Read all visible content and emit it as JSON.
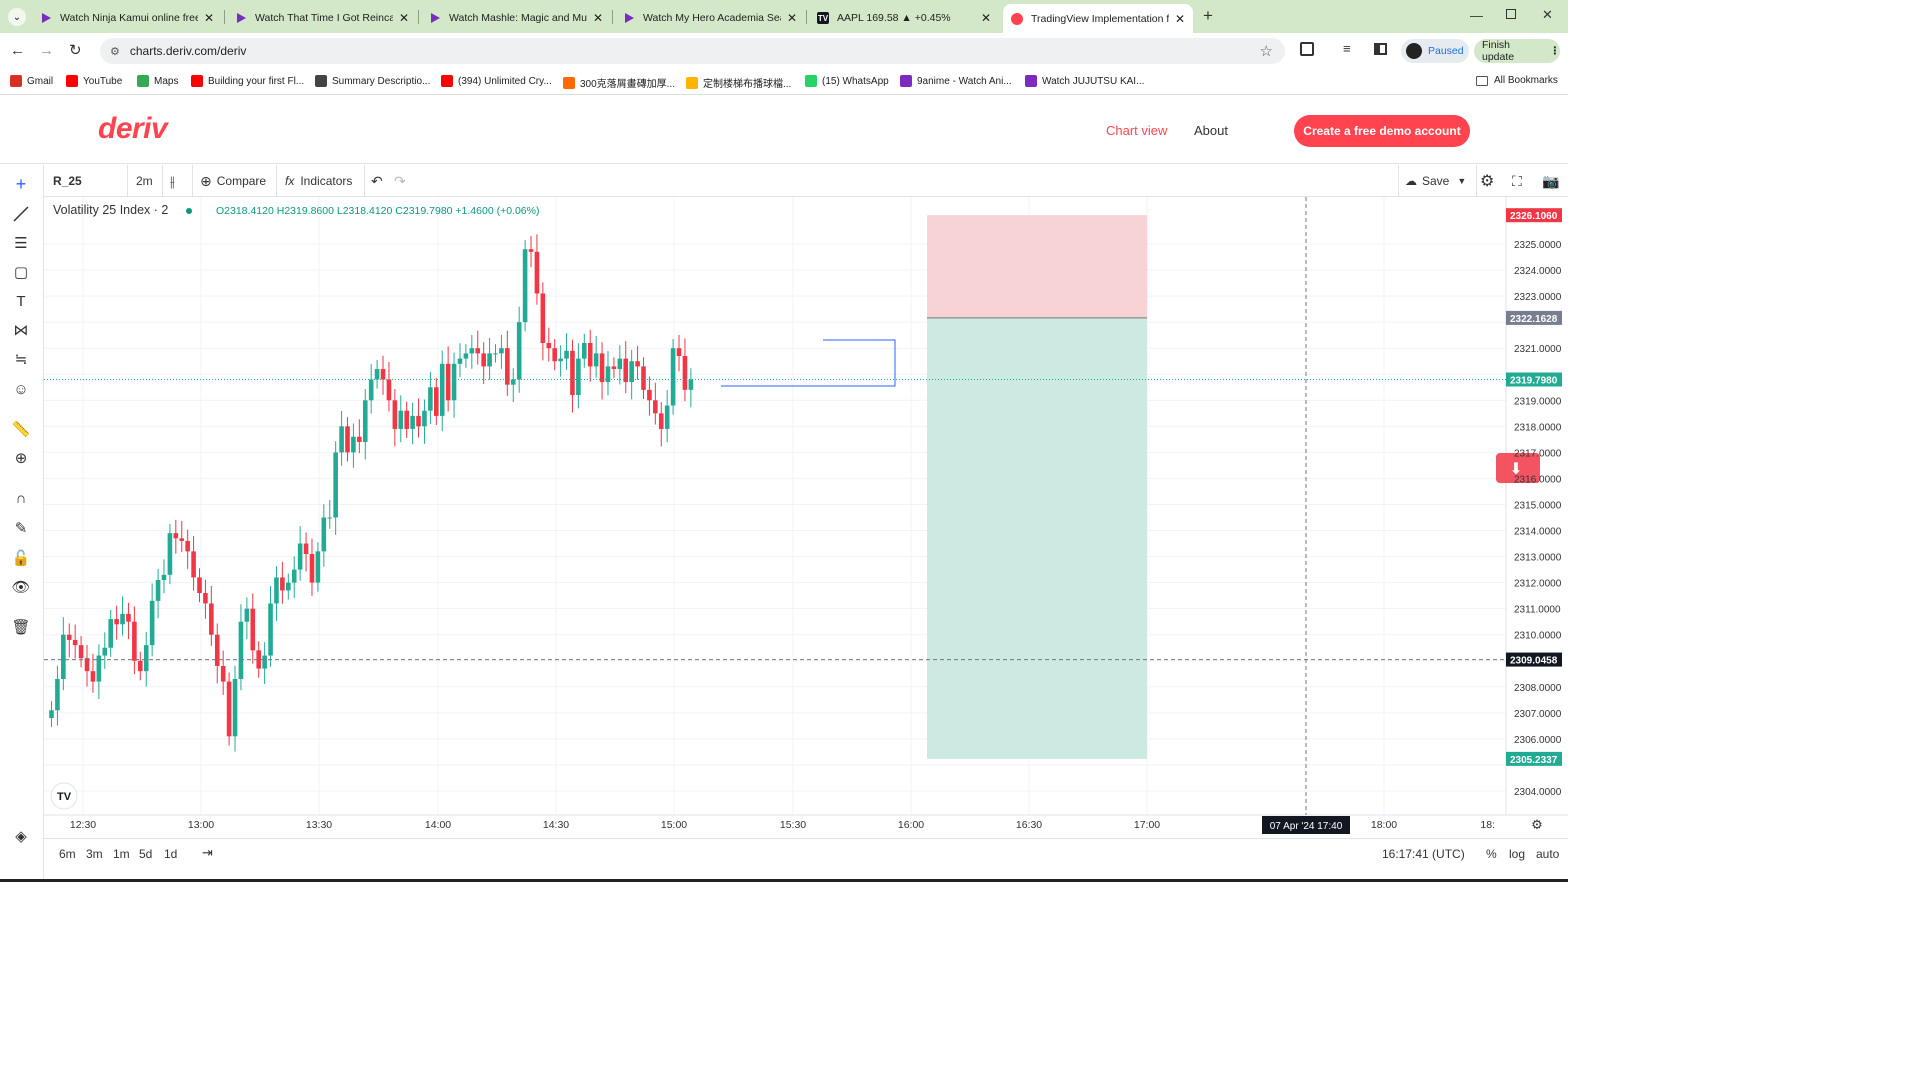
{
  "browser": {
    "tabs": [
      {
        "title": "Watch Ninja Kamui online free"
      },
      {
        "title": "Watch That Time I Got Reincarn"
      },
      {
        "title": "Watch Mashle: Magic and Musc"
      },
      {
        "title": "Watch My Hero Academia Seas"
      },
      {
        "title": "AAPL 169.58 ▲ +0.45%"
      },
      {
        "title": "TradingView Implementation fo"
      }
    ],
    "new_tab": "+",
    "url": "charts.deriv.com/deriv",
    "profile_status": "Paused",
    "update_button": "Finish update",
    "bookmarks": [
      {
        "label": "Gmail",
        "color": "#d93025"
      },
      {
        "label": "YouTube",
        "color": "#ff0000"
      },
      {
        "label": "Maps",
        "color": "#34a853"
      },
      {
        "label": "Building your first Fl...",
        "color": "#ff0000"
      },
      {
        "label": "Summary Descriptio...",
        "color": "#444444"
      },
      {
        "label": "(394) Unlimited Cry...",
        "color": "#ff0000"
      },
      {
        "label": "300克落屑畫磚加厚...",
        "color": "#ff6a00"
      },
      {
        "label": "定制楼梯布播球檔...",
        "color": "#ffb400"
      },
      {
        "label": "(15) WhatsApp",
        "color": "#25d366"
      },
      {
        "label": "9anime - Watch Ani...",
        "color": "#7b2cbf"
      },
      {
        "label": "Watch JUJUTSU KAI...",
        "color": "#7b2cbf"
      }
    ],
    "all_bookmarks": "All Bookmarks"
  },
  "site": {
    "logo": "deriv",
    "nav_chart_view": "Chart view",
    "nav_about": "About",
    "cta": "Create a free demo account"
  },
  "chart_toolbar": {
    "symbol": "R_25",
    "interval": "2m",
    "compare": "Compare",
    "indicators": "Indicators",
    "save": "Save"
  },
  "legend": {
    "name": "Volatility 25 Index · 2",
    "open": "O2318.4120",
    "high": "H2319.8600",
    "low": "L2318.4120",
    "close": "C2319.7980",
    "change": "+1.4600 (+0.06%)"
  },
  "bottom_bar": {
    "ranges": [
      "6m",
      "3m",
      "1m",
      "5d",
      "1d"
    ],
    "clock": "16:17:41 (UTC)",
    "percent": "%",
    "log": "log",
    "auto": "auto"
  },
  "chart_data": {
    "type": "candlestick",
    "y_ticks": [
      2325,
      2324,
      2323,
      2322,
      2321,
      2320,
      2319,
      2318,
      2317,
      2316,
      2315,
      2314,
      2313,
      2312,
      2311,
      2310,
      2309,
      2308,
      2307,
      2306,
      2305,
      2304
    ],
    "y_tick_labels": [
      "2325.0000",
      "2324.0000",
      "2323.0000",
      "",
      "2321.0000",
      "",
      "2319.0000",
      "2318.0000",
      "2317.0000",
      "2316.0000",
      "2315.0000",
      "2314.0000",
      "2313.0000",
      "2312.0000",
      "2311.0000",
      "2310.0000",
      "",
      "2308.0000",
      "2307.0000",
      "2306.0000",
      "",
      "2304.0000"
    ],
    "x_tick_labels": [
      "12:30",
      "13:00",
      "13:30",
      "14:00",
      "14:30",
      "15:00",
      "15:30",
      "16:00",
      "16:30",
      "17:00",
      "18:00"
    ],
    "crosshair_time": "07 Apr '24   17:40",
    "crosshair_price": "2309.0458",
    "last_price": "2319.7980",
    "position": {
      "type": "long",
      "entry": 2322.1628,
      "stop_loss": 2305.2337,
      "take_profit": 2326.106,
      "start_time": "16:04",
      "end_time": "17:00",
      "entry_label": "2322.1628",
      "stop_label": "2305.2337",
      "target_label": "2326.1060"
    },
    "candles_close_approx": [
      2307.1,
      2308.3,
      2310.0,
      2309.8,
      2309.6,
      2309.1,
      2308.6,
      2308.2,
      2309.2,
      2309.5,
      2310.6,
      2310.4,
      2310.8,
      2310.5,
      2309.0,
      2308.6,
      2309.6,
      2311.3,
      2312.1,
      2312.3,
      2313.9,
      2313.7,
      2313.6,
      2313.2,
      2312.2,
      2311.6,
      2311.2,
      2310.0,
      2308.8,
      2308.2,
      2306.1,
      2308.3,
      2310.5,
      2311.0,
      2309.4,
      2308.7,
      2309.2,
      2311.2,
      2312.2,
      2311.7,
      2312.0,
      2312.5,
      2313.5,
      2313.1,
      2312.0,
      2313.2,
      2314.5,
      2314.5,
      2317.0,
      2318.0,
      2317.0,
      2317.6,
      2317.4,
      2319.0,
      2319.8,
      2320.2,
      2319.8,
      2319.0,
      2317.9,
      2318.6,
      2317.9,
      2318.4,
      2318.0,
      2318.6,
      2319.5,
      2318.4,
      2320.4,
      2319.0,
      2320.4,
      2320.6,
      2320.8,
      2321.0,
      2320.8,
      2320.3,
      2320.8,
      2320.8,
      2321.0,
      2319.6,
      2319.8,
      2322.0,
      2324.8,
      2324.7,
      2323.1,
      2321.2,
      2321.0,
      2320.5,
      2320.6,
      2320.9,
      2319.2,
      2320.6,
      2321.2,
      2320.3,
      2320.8,
      2319.7,
      2320.3,
      2320.2,
      2320.6,
      2319.7,
      2320.5,
      2320.3,
      2319.4,
      2319.0,
      2318.5,
      2317.9,
      2318.8,
      2321.0,
      2320.7,
      2319.4,
      2319.8
    ]
  }
}
